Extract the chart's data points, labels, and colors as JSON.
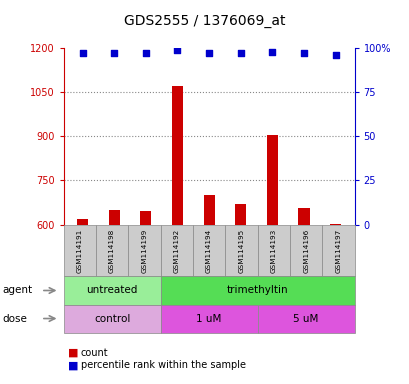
{
  "title": "GDS2555 / 1376069_at",
  "samples": [
    "GSM114191",
    "GSM114198",
    "GSM114199",
    "GSM114192",
    "GSM114194",
    "GSM114195",
    "GSM114193",
    "GSM114196",
    "GSM114197"
  ],
  "bar_values": [
    620,
    650,
    648,
    1070,
    700,
    670,
    905,
    655,
    602
  ],
  "percentile_values": [
    97,
    97,
    97,
    99,
    97,
    97,
    98,
    97,
    96
  ],
  "ylim_left": [
    600,
    1200
  ],
  "ylim_right": [
    0,
    100
  ],
  "yticks_left": [
    600,
    750,
    900,
    1050,
    1200
  ],
  "yticks_right": [
    0,
    25,
    50,
    75,
    100
  ],
  "bar_color": "#cc0000",
  "dot_color": "#0000cc",
  "agent_groups": [
    {
      "label": "untreated",
      "start": 0,
      "end": 3,
      "color": "#99ee99"
    },
    {
      "label": "trimethyltin",
      "start": 3,
      "end": 9,
      "color": "#55dd55"
    }
  ],
  "dose_groups": [
    {
      "label": "control",
      "start": 0,
      "end": 3,
      "color": "#ddaadd"
    },
    {
      "label": "1 uM",
      "start": 3,
      "end": 6,
      "color": "#dd55dd"
    },
    {
      "label": "5 uM",
      "start": 6,
      "end": 9,
      "color": "#dd55dd"
    }
  ],
  "axis_color_left": "#cc0000",
  "axis_color_right": "#0000cc",
  "grid_color": "#888888",
  "sample_box_color": "#cccccc",
  "bg_color": "#ffffff",
  "bar_width": 0.35
}
